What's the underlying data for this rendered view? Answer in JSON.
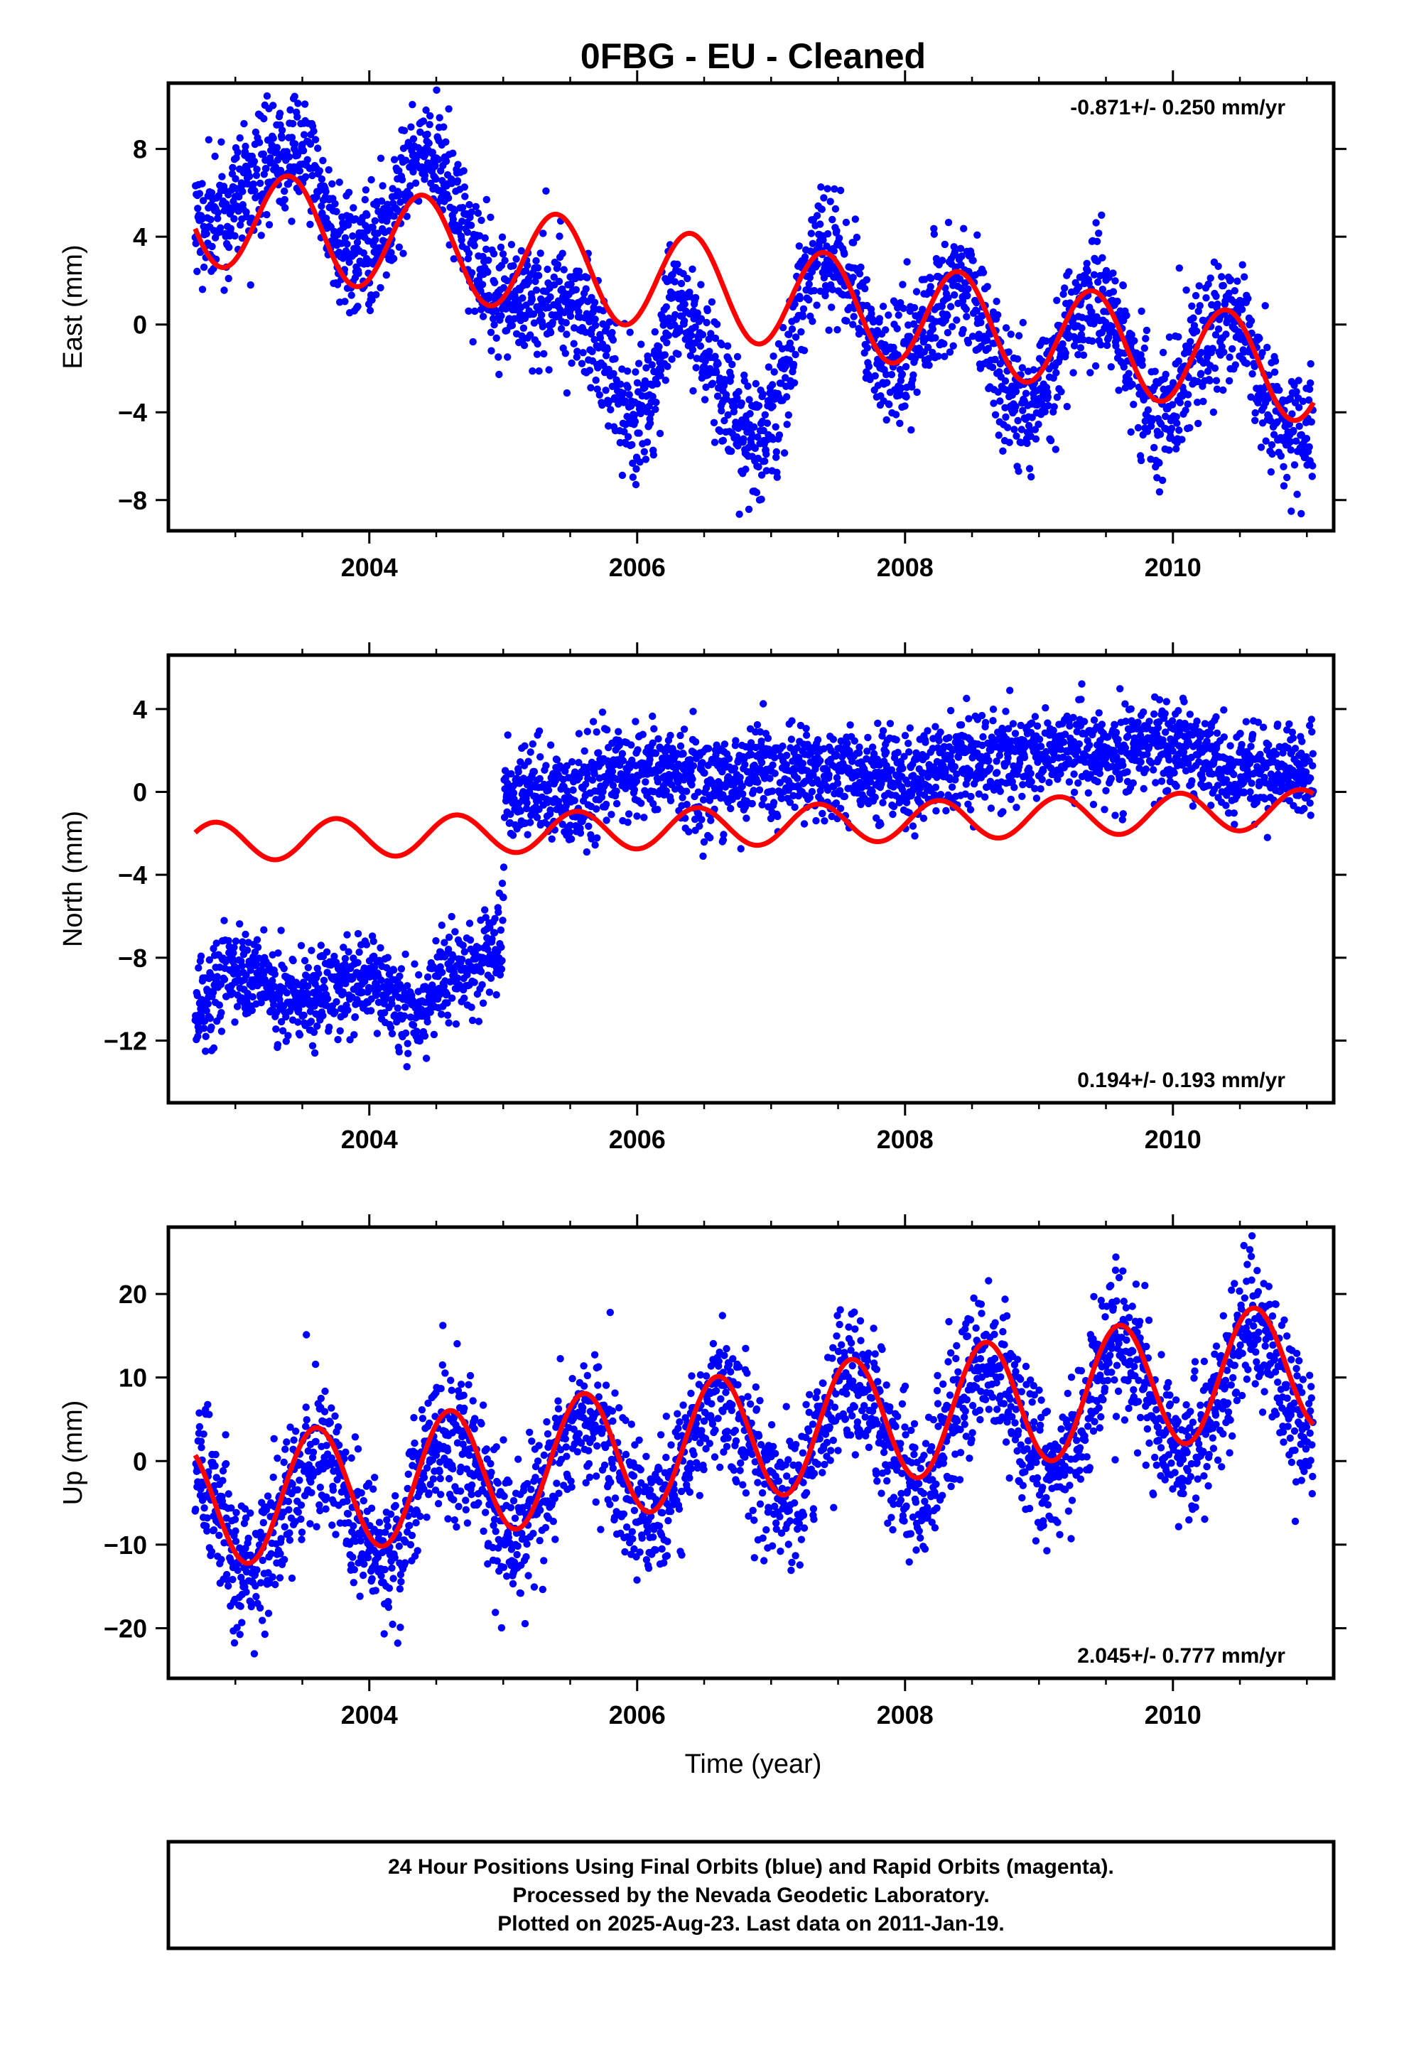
{
  "title": "0FBG  - EU - Cleaned",
  "xlabel": "Time (year)",
  "footer": {
    "line1": "24 Hour Positions Using Final Orbits (blue) and Rapid Orbits (magenta).",
    "line2": "Processed by the Nevada Geodetic Laboratory.",
    "line3": "Plotted on 2025-Aug-23. Last data on 2011-Jan-19."
  },
  "colors": {
    "points": "#0000ff",
    "fit": "#ff0000",
    "frame": "#000000"
  },
  "chart_data": [
    {
      "type": "scatter",
      "component": "east",
      "ylabel": "East (mm)",
      "rate_label": "-0.871+/- 0.250 mm/yr",
      "rate_position": "top-right",
      "xlim": [
        2002.5,
        2011.2
      ],
      "ylim": [
        -9.4,
        11.0
      ],
      "xticks": [
        2004,
        2006,
        2008,
        2010
      ],
      "yticks": [
        -8,
        -4,
        0,
        4,
        8
      ],
      "data_range": [
        2002.7,
        2011.05
      ],
      "jitter_sd": 1.4,
      "points_color": "#0000ff",
      "fit_color": "#ff0000",
      "observed_trend_anchors": [
        [
          2002.7,
          4.5
        ],
        [
          2003.45,
          8.0
        ],
        [
          2003.9,
          3.0
        ],
        [
          2004.45,
          7.5
        ],
        [
          2005.0,
          1.0
        ],
        [
          2005.5,
          1.0
        ],
        [
          2006.0,
          -4.0
        ],
        [
          2006.3,
          0.5
        ],
        [
          2006.9,
          -5.5
        ],
        [
          2007.4,
          3.5
        ],
        [
          2007.9,
          -2.0
        ],
        [
          2008.4,
          2.0
        ],
        [
          2008.9,
          -4.0
        ],
        [
          2009.4,
          1.5
        ],
        [
          2009.9,
          -4.0
        ],
        [
          2010.4,
          0.5
        ],
        [
          2010.9,
          -5.0
        ],
        [
          2011.05,
          -5.0
        ]
      ],
      "seasonal_fit": {
        "offset": 2.2,
        "trend": -0.871,
        "amplitude": 2.3,
        "period_years": 1.0,
        "peak_phase": 0.4,
        "reference_year": 2006.0
      }
    },
    {
      "type": "scatter",
      "component": "north",
      "ylabel": "North (mm)",
      "rate_label": "0.194+/- 0.193 mm/yr",
      "rate_position": "bottom-right",
      "xlim": [
        2002.5,
        2011.2
      ],
      "ylim": [
        -15.0,
        6.6
      ],
      "xticks": [
        2004,
        2006,
        2008,
        2010
      ],
      "yticks": [
        -12,
        -8,
        -4,
        0,
        4
      ],
      "data_range": [
        2002.7,
        2011.05
      ],
      "jitter_sd": 1.1,
      "points_color": "#0000ff",
      "fit_color": "#ff0000",
      "observed_trend_anchors": [
        [
          2002.7,
          -10.5
        ],
        [
          2003.0,
          -8.5
        ],
        [
          2003.5,
          -10.0
        ],
        [
          2004.0,
          -9.0
        ],
        [
          2004.3,
          -10.5
        ],
        [
          2004.6,
          -9.0
        ],
        [
          2004.99,
          -7.5
        ],
        [
          2005.01,
          0.0
        ],
        [
          2005.5,
          0.0
        ],
        [
          2006.0,
          1.0
        ],
        [
          2006.5,
          0.5
        ],
        [
          2007.0,
          1.0
        ],
        [
          2007.5,
          1.0
        ],
        [
          2008.0,
          0.5
        ],
        [
          2008.5,
          1.5
        ],
        [
          2009.0,
          2.0
        ],
        [
          2009.5,
          2.0
        ],
        [
          2010.0,
          2.0
        ],
        [
          2010.5,
          1.0
        ],
        [
          2011.05,
          1.0
        ]
      ],
      "seasonal_fit": {
        "offset": -1.8,
        "trend": 0.194,
        "amplitude": 0.95,
        "period_years": 0.9,
        "peak_phase": 0.5,
        "reference_year": 2006.0
      }
    },
    {
      "type": "scatter",
      "component": "up",
      "ylabel": "Up (mm)",
      "rate_label": "2.045+/- 0.777 mm/yr",
      "rate_position": "bottom-right",
      "xlim": [
        2002.5,
        2011.2
      ],
      "ylim": [
        -26.0,
        28.0
      ],
      "xticks": [
        2004,
        2006,
        2008,
        2010
      ],
      "yticks": [
        -20,
        -10,
        0,
        10,
        20
      ],
      "data_range": [
        2002.7,
        2011.05
      ],
      "jitter_sd": 4.2,
      "points_color": "#0000ff",
      "fit_color": "#ff0000",
      "observed_trend_anchors": [
        [
          2002.7,
          -3.0
        ],
        [
          2003.1,
          -13.0
        ],
        [
          2003.6,
          1.0
        ],
        [
          2004.1,
          -11.0
        ],
        [
          2004.6,
          3.0
        ],
        [
          2005.1,
          -9.0
        ],
        [
          2005.6,
          5.0
        ],
        [
          2006.1,
          -7.0
        ],
        [
          2006.6,
          8.0
        ],
        [
          2007.1,
          -5.0
        ],
        [
          2007.6,
          10.0
        ],
        [
          2008.1,
          -3.0
        ],
        [
          2008.6,
          12.0
        ],
        [
          2009.1,
          -1.0
        ],
        [
          2009.6,
          14.0
        ],
        [
          2010.1,
          1.0
        ],
        [
          2010.6,
          16.0
        ],
        [
          2011.05,
          3.0
        ]
      ],
      "seasonal_fit": {
        "offset": 1.3,
        "trend": 2.045,
        "amplitude": 7.6,
        "period_years": 1.0,
        "peak_phase": 0.6,
        "reference_year": 2006.0
      }
    }
  ]
}
